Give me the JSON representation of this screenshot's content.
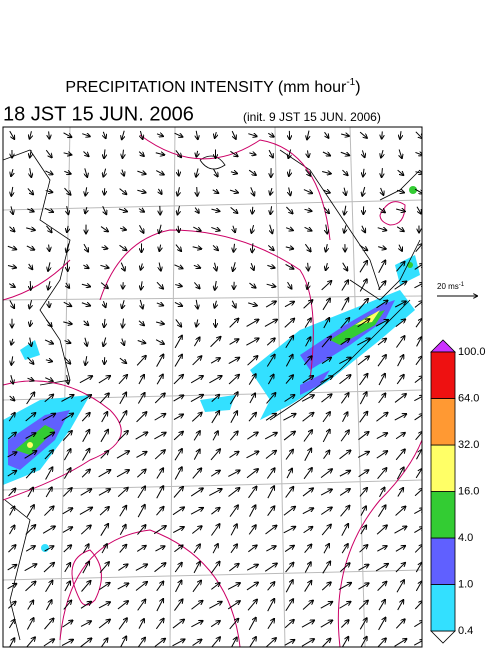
{
  "header": {
    "title": "PRECIPITATION INTENSITY (mm hour",
    "title_sup": "-1",
    "title_end": ")",
    "valid_time": "18 JST 15 JUN. 2006",
    "init_time": "(init. 9 JST 15 JUN. 2006)"
  },
  "wind_scale": {
    "label": "20 ms",
    "label_sup": "-1"
  },
  "colorbar": {
    "levels": [
      {
        "value": 0.4,
        "label": "0.4"
      },
      {
        "value": 1,
        "label": "1.0"
      },
      {
        "value": 4,
        "label": "4.0"
      },
      {
        "value": 16,
        "label": "16.0"
      },
      {
        "value": 32,
        "label": "32.0"
      },
      {
        "value": 64,
        "label": "64.0"
      },
      {
        "value": 100,
        "label": "100.0"
      }
    ],
    "colors": [
      "#33e0ff",
      "#6060ff",
      "#33cc33",
      "#ffff66",
      "#ff9933",
      "#ee1111"
    ],
    "over_color": "#cc33ff",
    "under_color": "#ffffff"
  }
}
